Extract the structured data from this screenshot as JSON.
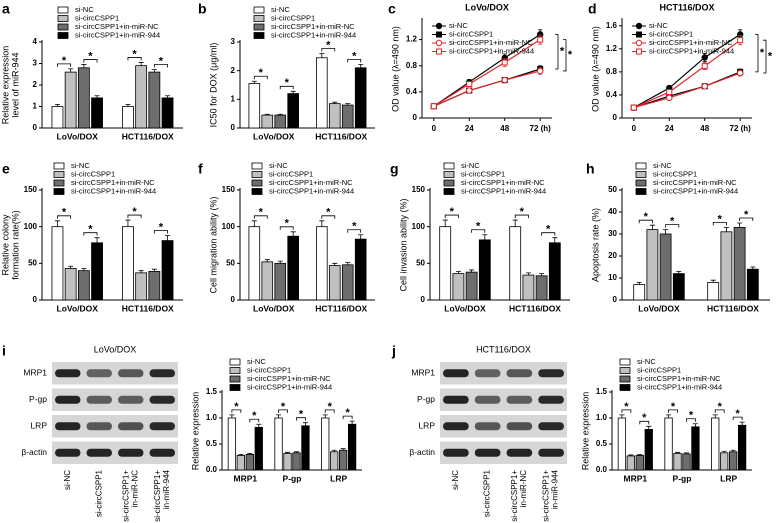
{
  "chart_data": [
    {
      "type": "bar",
      "panel": "a",
      "ylabel": [
        "Relative expression",
        "level of miR-944"
      ],
      "categories": [
        "LoVo/DOX",
        "HCT116/DOX"
      ],
      "ylim": [
        0,
        4
      ],
      "yticks": [
        0,
        1,
        2,
        3,
        4
      ],
      "significance_label": "*",
      "series": [
        {
          "name": "si-NC",
          "color": "#ffffff",
          "values": [
            1.0,
            1.0
          ],
          "errors": [
            0.1,
            0.1
          ]
        },
        {
          "name": "si-circCSPP1",
          "color": "#c0c0c0",
          "values": [
            2.6,
            2.9
          ],
          "errors": [
            0.15,
            0.15
          ]
        },
        {
          "name": "si-circCSPP1+in-miR-NC",
          "color": "#6e6e6e",
          "values": [
            2.8,
            2.6
          ],
          "errors": [
            0.15,
            0.12
          ]
        },
        {
          "name": "si-circCSPP1+in-miR-944",
          "color": "#000000",
          "values": [
            1.4,
            1.4
          ],
          "errors": [
            0.1,
            0.1
          ]
        }
      ]
    },
    {
      "type": "bar",
      "panel": "b",
      "ylabel": "IC50 for DOX (μg/ml)",
      "categories": [
        "LoVo/DOX",
        "HCT116/DOX"
      ],
      "ylim": [
        0,
        3
      ],
      "yticks": [
        0,
        1,
        2,
        3
      ],
      "significance_label": "*",
      "series": [
        {
          "name": "si-NC",
          "color": "#ffffff",
          "values": [
            1.55,
            2.45
          ],
          "errors": [
            0.08,
            0.15
          ]
        },
        {
          "name": "si-circCSPP1",
          "color": "#c0c0c0",
          "values": [
            0.45,
            0.85
          ],
          "errors": [
            0.03,
            0.05
          ]
        },
        {
          "name": "si-circCSPP1+in-miR-NC",
          "color": "#6e6e6e",
          "values": [
            0.45,
            0.8
          ],
          "errors": [
            0.03,
            0.05
          ]
        },
        {
          "name": "si-circCSPP1+in-miR-944",
          "color": "#000000",
          "values": [
            1.2,
            2.1
          ],
          "errors": [
            0.08,
            0.12
          ]
        }
      ]
    },
    {
      "type": "line",
      "panel": "c",
      "title": "LoVo/DOX",
      "ylabel": "OD value (λ=490 nm)",
      "x": [
        0,
        24,
        48,
        72
      ],
      "xlim": [
        -8,
        80
      ],
      "xticks": [
        0,
        24,
        48,
        {
          "value": 72,
          "label": "72 (h)"
        }
      ],
      "ylim": [
        0,
        1.5
      ],
      "yticks": [
        0,
        0.4,
        0.8,
        1.2
      ],
      "significance_label": "*",
      "series": [
        {
          "name": "si-NC",
          "color": "#000000",
          "marker": "circle",
          "filled": true,
          "values": [
            0.18,
            0.55,
            0.92,
            1.28
          ],
          "errors": [
            0.02,
            0.04,
            0.06,
            0.07
          ]
        },
        {
          "name": "si-circCSPP1",
          "color": "#000000",
          "marker": "square",
          "filled": true,
          "values": [
            0.18,
            0.42,
            0.58,
            0.75
          ],
          "errors": [
            0.02,
            0.03,
            0.04,
            0.05
          ]
        },
        {
          "name": "si-circCSPP1+in-miR-NC",
          "color": "#e0262b",
          "marker": "circle",
          "filled": false,
          "values": [
            0.18,
            0.42,
            0.58,
            0.72
          ],
          "errors": [
            0.02,
            0.03,
            0.04,
            0.05
          ]
        },
        {
          "name": "si-circCSPP1+in-miR-944",
          "color": "#e0262b",
          "marker": "square",
          "filled": false,
          "values": [
            0.18,
            0.52,
            0.85,
            1.2
          ],
          "errors": [
            0.02,
            0.04,
            0.06,
            0.07
          ]
        }
      ]
    },
    {
      "type": "line",
      "panel": "d",
      "title": "HCT116/DOX",
      "ylabel": "OD value (λ=490 nm)",
      "x": [
        0,
        24,
        48,
        72
      ],
      "xlim": [
        -8,
        80
      ],
      "xticks": [
        0,
        24,
        48,
        {
          "value": 72,
          "label": "72 (h)"
        }
      ],
      "ylim": [
        0,
        1.7
      ],
      "yticks": [
        0,
        0.4,
        0.8,
        1.2,
        1.6
      ],
      "significance_label": "*",
      "series": [
        {
          "name": "si-NC",
          "color": "#000000",
          "marker": "circle",
          "filled": true,
          "values": [
            0.18,
            0.52,
            1.05,
            1.45
          ],
          "errors": [
            0.02,
            0.04,
            0.07,
            0.08
          ]
        },
        {
          "name": "si-circCSPP1",
          "color": "#000000",
          "marker": "square",
          "filled": true,
          "values": [
            0.18,
            0.38,
            0.55,
            0.8
          ],
          "errors": [
            0.02,
            0.03,
            0.04,
            0.05
          ]
        },
        {
          "name": "si-circCSPP1+in-miR-NC",
          "color": "#e0262b",
          "marker": "circle",
          "filled": false,
          "values": [
            0.18,
            0.35,
            0.55,
            0.78
          ],
          "errors": [
            0.02,
            0.03,
            0.04,
            0.05
          ]
        },
        {
          "name": "si-circCSPP1+in-miR-944",
          "color": "#e0262b",
          "marker": "square",
          "filled": false,
          "values": [
            0.18,
            0.45,
            0.9,
            1.35
          ],
          "errors": [
            0.02,
            0.04,
            0.06,
            0.08
          ]
        }
      ]
    },
    {
      "type": "bar",
      "panel": "e",
      "ylabel": [
        "Relative colony",
        "formation rate(%)"
      ],
      "categories": [
        "LoVo/DOX",
        "HCT116/DOX"
      ],
      "ylim": [
        0,
        150
      ],
      "yticks": [
        0,
        50,
        100,
        150
      ],
      "significance_label": "*",
      "series": [
        {
          "name": "si-NC",
          "color": "#ffffff",
          "values": [
            100,
            100
          ],
          "errors": [
            8,
            9
          ]
        },
        {
          "name": "si-circCSPP1",
          "color": "#c0c0c0",
          "values": [
            43,
            37
          ],
          "errors": [
            3,
            3
          ]
        },
        {
          "name": "si-circCSPP1+in-miR-NC",
          "color": "#6e6e6e",
          "values": [
            40,
            39
          ],
          "errors": [
            3,
            3
          ]
        },
        {
          "name": "si-circCSPP1+in-miR-944",
          "color": "#000000",
          "values": [
            78,
            81
          ],
          "errors": [
            7,
            7
          ]
        }
      ]
    },
    {
      "type": "bar",
      "panel": "f",
      "ylabel": "Cell migration ability (%)",
      "categories": [
        "LoVo/DOX",
        "HCT116/DOX"
      ],
      "ylim": [
        0,
        150
      ],
      "yticks": [
        0,
        50,
        100,
        150
      ],
      "significance_label": "*",
      "series": [
        {
          "name": "si-NC",
          "color": "#ffffff",
          "values": [
            100,
            100
          ],
          "errors": [
            8,
            8
          ]
        },
        {
          "name": "si-circCSPP1",
          "color": "#c0c0c0",
          "values": [
            52,
            47
          ],
          "errors": [
            3,
            3
          ]
        },
        {
          "name": "si-circCSPP1+in-miR-NC",
          "color": "#6e6e6e",
          "values": [
            50,
            48
          ],
          "errors": [
            3,
            3
          ]
        },
        {
          "name": "si-circCSPP1+in-miR-944",
          "color": "#000000",
          "values": [
            87,
            83
          ],
          "errors": [
            6,
            6
          ]
        }
      ]
    },
    {
      "type": "bar",
      "panel": "g",
      "ylabel": "Cell invasion ability (%)",
      "categories": [
        "LoVo/DOX",
        "HCT116/DOX"
      ],
      "ylim": [
        0,
        150
      ],
      "yticks": [
        0,
        50,
        100,
        150
      ],
      "significance_label": "*",
      "series": [
        {
          "name": "si-NC",
          "color": "#ffffff",
          "values": [
            100,
            100
          ],
          "errors": [
            9,
            9
          ]
        },
        {
          "name": "si-circCSPP1",
          "color": "#c0c0c0",
          "values": [
            36,
            34
          ],
          "errors": [
            3,
            3
          ]
        },
        {
          "name": "si-circCSPP1+in-miR-NC",
          "color": "#6e6e6e",
          "values": [
            38,
            33
          ],
          "errors": [
            3,
            3
          ]
        },
        {
          "name": "si-circCSPP1+in-miR-944",
          "color": "#000000",
          "values": [
            82,
            78
          ],
          "errors": [
            7,
            7
          ]
        }
      ]
    },
    {
      "type": "bar",
      "panel": "h",
      "ylabel": "Apoptosis rate (%)",
      "categories": [
        "LoVo/DOX",
        "HCT116/DOX"
      ],
      "ylim": [
        0,
        50
      ],
      "yticks": [
        0,
        10,
        20,
        30,
        40,
        50
      ],
      "significance_label": "*",
      "series": [
        {
          "name": "si-NC",
          "color": "#ffffff",
          "values": [
            7,
            8
          ],
          "errors": [
            1,
            1
          ]
        },
        {
          "name": "si-circCSPP1",
          "color": "#c0c0c0",
          "values": [
            32,
            31
          ],
          "errors": [
            2,
            2
          ]
        },
        {
          "name": "si-circCSPP1+in-miR-NC",
          "color": "#6e6e6e",
          "values": [
            30,
            33
          ],
          "errors": [
            2,
            2
          ]
        },
        {
          "name": "si-circCSPP1+in-miR-944",
          "color": "#000000",
          "values": [
            12,
            14
          ],
          "errors": [
            1,
            1
          ]
        }
      ]
    },
    {
      "type": "blot",
      "panel": "i",
      "title": "LoVo/DOX",
      "rows": [
        "MRP1",
        "P-gp",
        "LRP",
        "β-actin"
      ],
      "lanes": [
        [
          "si-NC"
        ],
        [
          "si-circCSPP1"
        ],
        [
          "si-circCSPP1+",
          "in-miR-NC"
        ],
        [
          "si-circCSPP1+",
          "in-miR-944"
        ]
      ]
    },
    {
      "type": "bar",
      "ylabel": "Relative expression",
      "categories": [
        "MRP1",
        "P-gp",
        "LRP"
      ],
      "ylim": [
        0,
        1.5
      ],
      "yticks": [
        {
          "value": 0,
          "label": "0.0"
        },
        0.5,
        {
          "value": 1,
          "label": "1.0"
        },
        1.5
      ],
      "significance_label": "*",
      "series": [
        {
          "name": "si-NC",
          "color": "#ffffff",
          "values": [
            1,
            1,
            1
          ],
          "errors": [
            0.06,
            0.06,
            0.06
          ]
        },
        {
          "name": "si-circCSPP1",
          "color": "#c0c0c0",
          "values": [
            0.28,
            0.32,
            0.35
          ],
          "errors": [
            0.02,
            0.02,
            0.03
          ]
        },
        {
          "name": "si-circCSPP1+in-miR-NC",
          "color": "#6e6e6e",
          "values": [
            0.3,
            0.33,
            0.38
          ],
          "errors": [
            0.02,
            0.02,
            0.03
          ]
        },
        {
          "name": "si-circCSPP1+in-miR-944",
          "color": "#000000",
          "values": [
            0.82,
            0.85,
            0.88
          ],
          "errors": [
            0.06,
            0.06,
            0.06
          ]
        }
      ]
    },
    {
      "type": "blot",
      "panel": "j",
      "title": "HCT116/DOX",
      "rows": [
        "MRP1",
        "P-gp",
        "LRP",
        "β-actin"
      ],
      "lanes": [
        [
          "si-NC"
        ],
        [
          "si-circCSPP1"
        ],
        [
          "si-circCSPP1+",
          "in-miR-NC"
        ],
        [
          "si-circCSPP1+",
          "in-miR-944"
        ]
      ]
    },
    {
      "type": "bar",
      "ylabel": "Relative expression",
      "categories": [
        "MRP1",
        "P-gp",
        "LRP"
      ],
      "ylim": [
        0,
        1.5
      ],
      "yticks": [
        {
          "value": 0,
          "label": "0.0"
        },
        0.5,
        {
          "value": 1,
          "label": "1.0"
        },
        1.5
      ],
      "significance_label": "*",
      "series": [
        {
          "name": "si-NC",
          "color": "#ffffff",
          "values": [
            1,
            1,
            1
          ],
          "errors": [
            0.06,
            0.06,
            0.06
          ]
        },
        {
          "name": "si-circCSPP1",
          "color": "#c0c0c0",
          "values": [
            0.27,
            0.32,
            0.33
          ],
          "errors": [
            0.02,
            0.02,
            0.03
          ]
        },
        {
          "name": "si-circCSPP1+in-miR-NC",
          "color": "#6e6e6e",
          "values": [
            0.28,
            0.31,
            0.35
          ],
          "errors": [
            0.02,
            0.02,
            0.03
          ]
        },
        {
          "name": "si-circCSPP1+in-miR-944",
          "color": "#000000",
          "values": [
            0.78,
            0.83,
            0.86
          ],
          "errors": [
            0.06,
            0.06,
            0.06
          ]
        }
      ]
    }
  ]
}
